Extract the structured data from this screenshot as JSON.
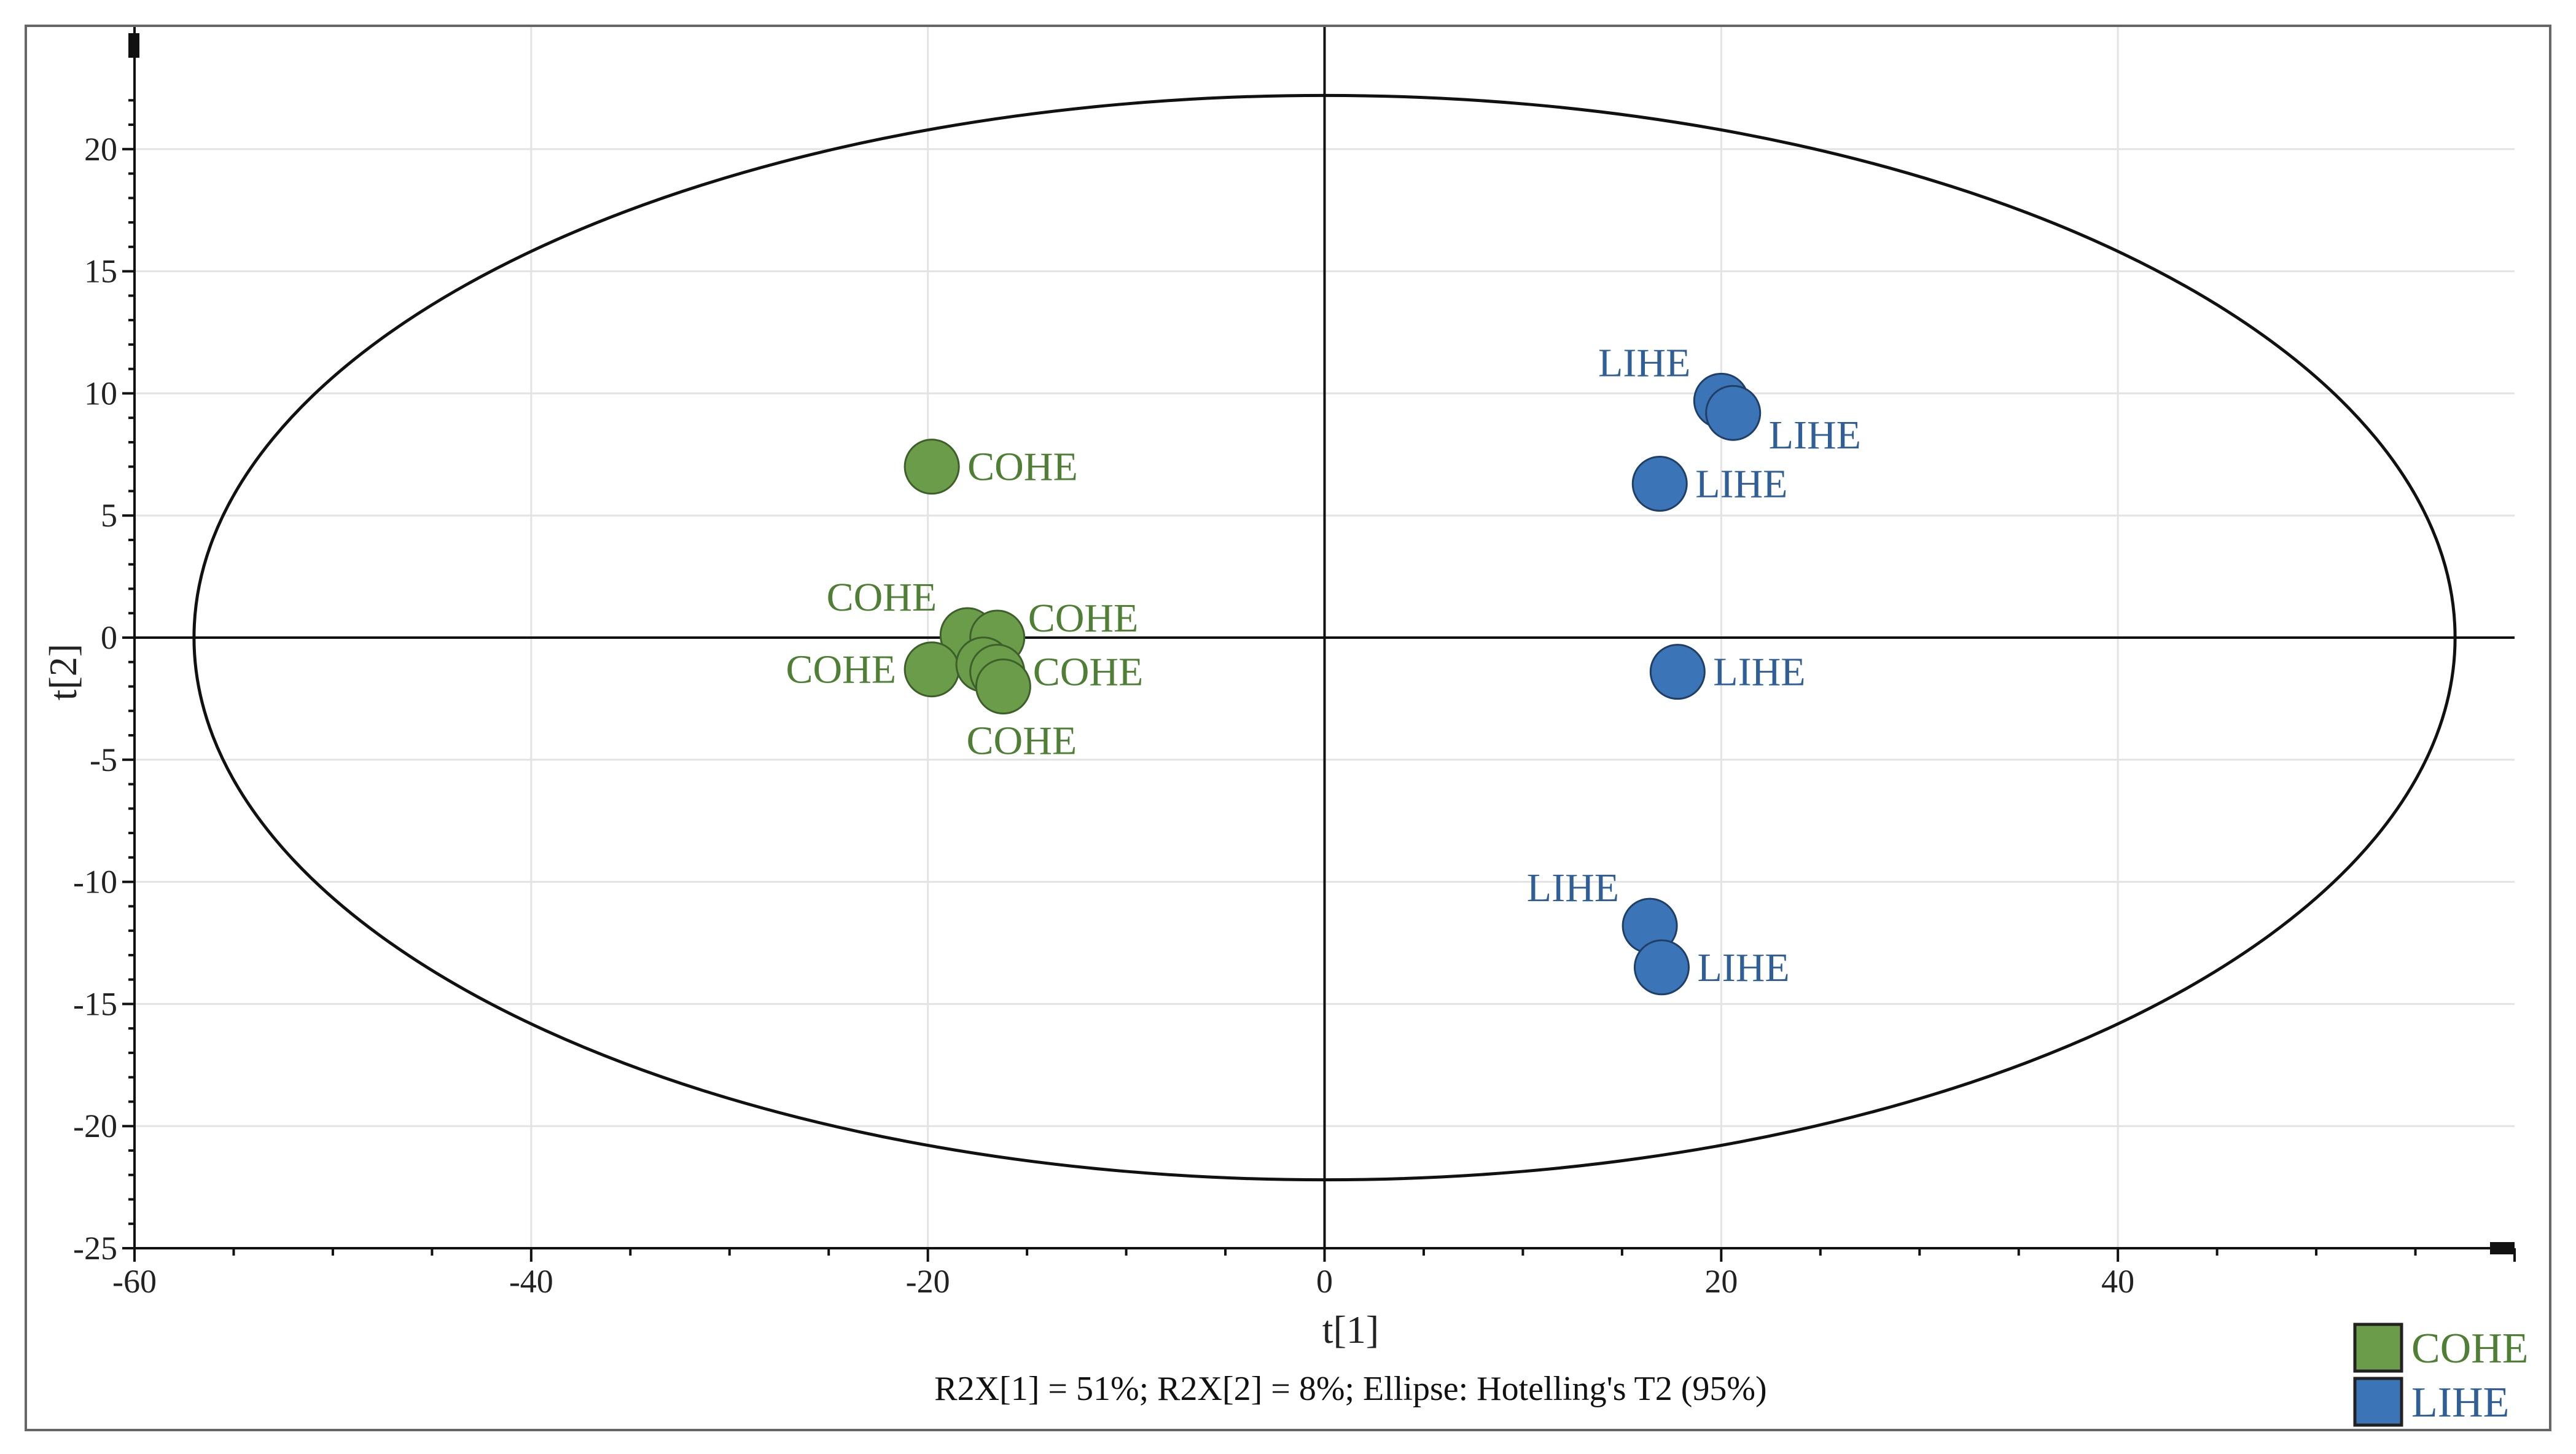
{
  "chart_data": {
    "type": "scatter",
    "xlabel": "t[1]",
    "ylabel": "t[2]",
    "xlim": [
      -60,
      60
    ],
    "ylim": [
      -25,
      25
    ],
    "x_ticks": [
      -60,
      -40,
      -20,
      0,
      20,
      40
    ],
    "y_ticks": [
      20,
      15,
      10,
      5,
      0,
      -5,
      -10,
      -15,
      -20,
      -25
    ],
    "x_tick_labels": [
      "-60",
      "-40",
      "-20",
      "0",
      "20",
      "40"
    ],
    "y_tick_labels": [
      "20",
      "15",
      "10",
      "5",
      "0",
      "-5",
      "-10",
      "-15",
      "-20",
      "-25"
    ],
    "grid": true,
    "footer": "R2X[1] = 51%; R2X[2] = 8%; Ellipse: Hotelling's T2 (95%)",
    "ellipse": {
      "x_semi_axis": 57,
      "y_semi_axis": 22.2
    },
    "legend_position": "bottom-right",
    "series": [
      {
        "name": "COHE",
        "color": "#6a9c4a",
        "edge_color": "#3d5f2a",
        "points": [
          {
            "x": -19.8,
            "y": 7.0,
            "label": "COHE",
            "label_side": "right"
          },
          {
            "x": -18.0,
            "y": 0.1,
            "label": "COHE",
            "label_side": "upper-left"
          },
          {
            "x": -16.5,
            "y": 0.0,
            "label": "COHE",
            "label_side": "upper-right"
          },
          {
            "x": -19.8,
            "y": -1.3,
            "label": "COHE",
            "label_side": "left"
          },
          {
            "x": -17.2,
            "y": -1.1,
            "label": "",
            "label_side": "none"
          },
          {
            "x": -16.5,
            "y": -1.4,
            "label": "COHE",
            "label_side": "right"
          },
          {
            "x": -16.2,
            "y": -2.0,
            "label": "COHE",
            "label_side": "below"
          }
        ]
      },
      {
        "name": "LIHE",
        "color": "#3c74b8",
        "edge_color": "#1f3f66",
        "points": [
          {
            "x": 20.0,
            "y": 9.7,
            "label": "LIHE",
            "label_side": "upper-left"
          },
          {
            "x": 20.6,
            "y": 9.2,
            "label": "LIHE",
            "label_side": "lower-right"
          },
          {
            "x": 16.9,
            "y": 6.3,
            "label": "LIHE",
            "label_side": "right"
          },
          {
            "x": 17.8,
            "y": -1.4,
            "label": "LIHE",
            "label_side": "right"
          },
          {
            "x": 16.4,
            "y": -11.8,
            "label": "LIHE",
            "label_side": "upper-left"
          },
          {
            "x": 17.0,
            "y": -13.5,
            "label": "LIHE",
            "label_side": "right"
          }
        ]
      }
    ]
  },
  "legend": {
    "items": [
      {
        "label": "COHE",
        "color": "#6a9c4a",
        "text_color": "#4f7f35"
      },
      {
        "label": "LIHE",
        "color": "#3c74b8",
        "text_color": "#2f5f96"
      }
    ]
  }
}
